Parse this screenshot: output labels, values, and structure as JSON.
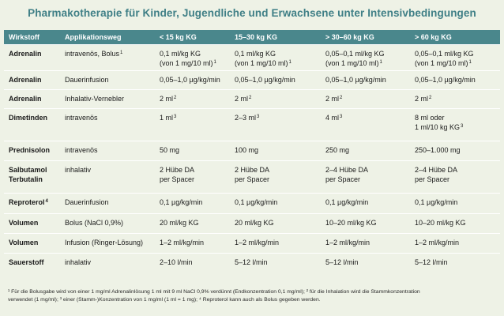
{
  "title": "Pharmakotherapie für Kinder, Jugendliche und Erwachsene unter Intensivbedingungen",
  "headers": [
    "Wirkstoff",
    "Applikationsweg",
    "< 15 kg KG",
    "15–30 kg KG",
    "> 30–60 kg KG",
    "> 60 kg KG"
  ],
  "rows": [
    {
      "drug": [
        "Adrenalin"
      ],
      "route": [
        "intravenös, Bolus"
      ],
      "route_sup": "1",
      "c1": [
        "0,1 ml/kg KG",
        "(von 1 mg/10 ml)"
      ],
      "c1_sup": "1",
      "c2": [
        "0,1 ml/kg KG",
        "(von 1 mg/10 ml)"
      ],
      "c2_sup": "1",
      "c3": [
        "0,05–0,1 ml/kg KG",
        "(von 1 mg/10 ml)"
      ],
      "c3_sup": "1",
      "c4": [
        "0,05–0,1 ml/kg KG",
        "(von 1 mg/10 ml)"
      ],
      "c4_sup": "1"
    },
    {
      "drug": [
        "Adrenalin"
      ],
      "route": [
        "Dauerinfusion"
      ],
      "c1": [
        "0,05–1,0 µg/kg/min"
      ],
      "c2": [
        "0,05–1,0 µg/kg/min"
      ],
      "c3": [
        "0,05–1,0 µg/kg/min"
      ],
      "c4": [
        "0,05–1,0 µg/kg/min"
      ]
    },
    {
      "drug": [
        "Adrenalin"
      ],
      "route": [
        "Inhalativ-Vernebler"
      ],
      "c1": [
        "2 ml"
      ],
      "c1_sup": "2",
      "c2": [
        "2 ml"
      ],
      "c2_sup": "2",
      "c3": [
        "2 ml"
      ],
      "c3_sup": "2",
      "c4": [
        "2 ml"
      ],
      "c4_sup": "2"
    },
    {
      "drug": [
        "Dimetinden"
      ],
      "route": [
        "intravenös"
      ],
      "c1": [
        "1 ml"
      ],
      "c1_sup": "3",
      "c2": [
        "2–3 ml"
      ],
      "c2_sup": "3",
      "c3": [
        "4 ml"
      ],
      "c3_sup": "3",
      "c4": [
        "8 ml oder",
        "1 ml/10 kg KG"
      ],
      "c4_sup": "3"
    },
    {
      "drug": [
        "Prednisolon"
      ],
      "route": [
        "intravenös"
      ],
      "c1": [
        "50 mg"
      ],
      "c2": [
        "100 mg"
      ],
      "c3": [
        "250 mg"
      ],
      "c4": [
        "250–1.000 mg"
      ]
    },
    {
      "drug": [
        "Salbutamol",
        "Terbutalin"
      ],
      "route": [
        "inhalativ"
      ],
      "c1": [
        "2 Hübe DA",
        "per Spacer"
      ],
      "c2": [
        "2 Hübe DA",
        "per Spacer"
      ],
      "c3": [
        "2–4 Hübe DA",
        "per Spacer"
      ],
      "c4": [
        "2–4 Hübe DA",
        "per Spacer"
      ]
    },
    {
      "drug": [
        "Reproterol"
      ],
      "drug_sup": "4",
      "route": [
        "Dauerinfusion"
      ],
      "c1": [
        "0,1 µg/kg/min"
      ],
      "c2": [
        "0,1 µg/kg/min"
      ],
      "c3": [
        "0,1 µg/kg/min"
      ],
      "c4": [
        "0,1 µg/kg/min"
      ]
    },
    {
      "drug": [
        "Volumen"
      ],
      "route": [
        "Bolus (NaCl 0,9%)"
      ],
      "c1": [
        "20 ml/kg KG"
      ],
      "c2": [
        "20 ml/kg KG"
      ],
      "c3": [
        "10–20 ml/kg KG"
      ],
      "c4": [
        "10–20 ml/kg KG"
      ]
    },
    {
      "drug": [
        "Volumen"
      ],
      "route": [
        "Infusion (Ringer-Lösung)"
      ],
      "c1": [
        "1–2 ml/kg/min"
      ],
      "c2": [
        "1–2 ml/kg/min"
      ],
      "c3": [
        "1–2 ml/kg/min"
      ],
      "c4": [
        "1–2 ml/kg/min"
      ]
    },
    {
      "drug": [
        "Sauerstoff"
      ],
      "route": [
        "inhalativ"
      ],
      "c1": [
        "2–10 l/min"
      ],
      "c2": [
        "5–12 l/min"
      ],
      "c3": [
        "5–12 l/min"
      ],
      "c4": [
        "5–12 l/min"
      ]
    }
  ],
  "footnote": {
    "line1": "¹ Für die Bolusgabe wird von einer 1 mg/ml Adrenalinlösung 1 ml mit 9 ml NaCl 0,9% verdünnt (Endkonzentration 0,1 mg/ml); ² für die Inhalation wird die Stammkonzentration",
    "line2": "verwendet (1 mg/ml); ³ einer (Stamm-)Konzentration von 1 mg/ml (1 ml = 1 mg); ⁴ Reproterol kann auch als Bolus gegeben werden."
  }
}
